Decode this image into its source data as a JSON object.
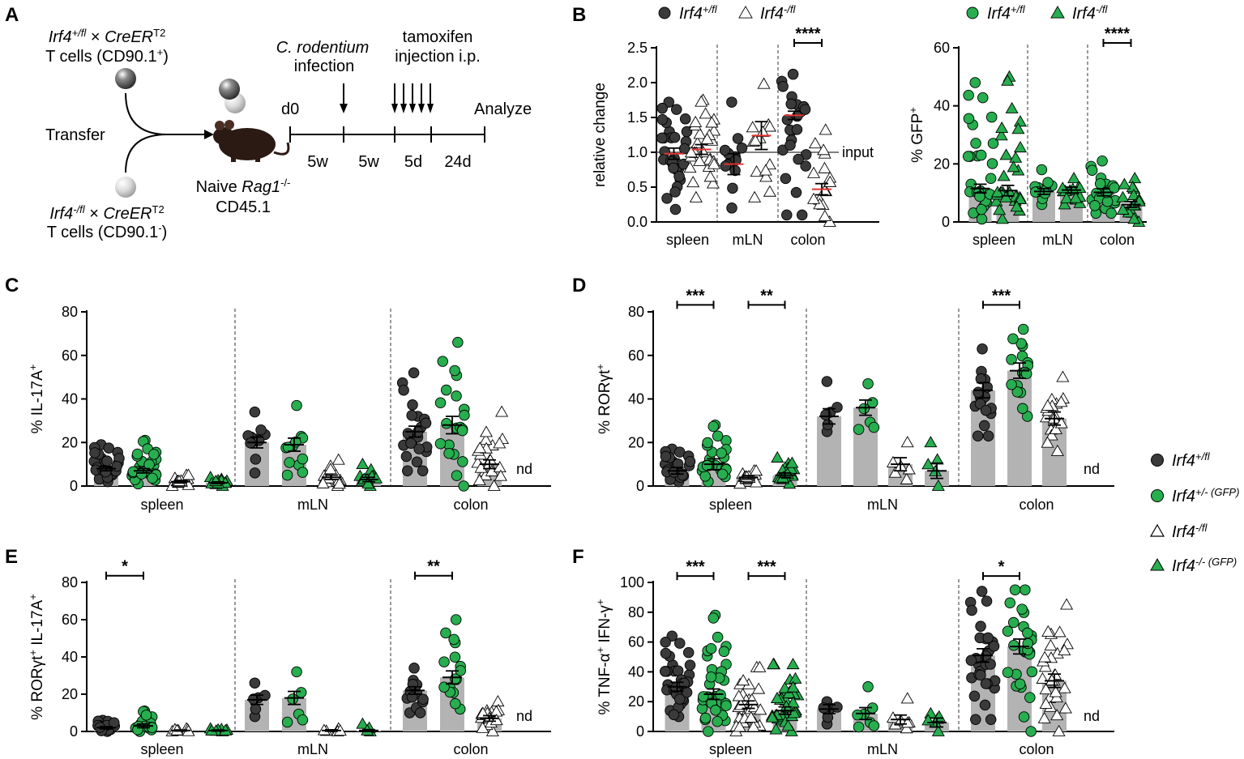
{
  "figure": {
    "panel_labels": [
      "A",
      "B",
      "C",
      "D",
      "E",
      "F"
    ]
  },
  "schematic": {
    "donor_top": {
      "gene": "Irf4",
      "genotype": "+/fl",
      "cre": "CreER",
      "cre_sup": "T2",
      "cell_line": "T cells (CD90.1",
      "cell_sup": "+",
      "close": ")"
    },
    "donor_bottom": {
      "gene": "Irf4",
      "genotype": "-/fl",
      "cre": "CreER",
      "cre_sup": "T2",
      "cell_line": "T cells (CD90.1",
      "cell_sup": "-",
      "close": ")"
    },
    "transfer_label": "Transfer",
    "recipient": {
      "prefix": "Naive ",
      "gene": "Rag1",
      "sup": "-/-",
      "line2": "CD45.1"
    },
    "events": {
      "infection_italic": "C. rodentium",
      "infection": "infection",
      "tamoxifen": "tamoxifen",
      "injection": "injection i.p."
    },
    "timeline": {
      "start": "d0",
      "end": "Analyze",
      "intervals": [
        "5w",
        "5w",
        "5d",
        "24d"
      ]
    },
    "colors": {
      "dark_cell": "#555555",
      "light_cell": "#d4d4d4",
      "mouse": "#2b1a14"
    }
  },
  "colors": {
    "wt": "#3a3a3a",
    "green": "#27ae4f",
    "bar": "#b3b3b3",
    "median": "#e8312f",
    "axis": "#000000"
  },
  "legend_main": {
    "items": [
      {
        "gene": "Irf4",
        "sup": "+/fl",
        "marker": "circle",
        "color": "#3a3a3a"
      },
      {
        "gene": "Irf4",
        "sup": "+/- (GFP)",
        "marker": "circle",
        "color": "#27ae4f"
      },
      {
        "gene": "Irf4",
        "sup": "-/fl",
        "marker": "triangle",
        "color": "#ffffff"
      },
      {
        "gene": "Irf4",
        "sup": "-/- (GFP)",
        "marker": "triangle",
        "color": "#27ae4f"
      }
    ]
  },
  "chart_data": [
    {
      "id": "B1",
      "panel": "B",
      "type": "scatter",
      "ylabel": "relative change",
      "ylim": [
        0,
        2.5
      ],
      "yticks": [
        0.0,
        0.5,
        1.0,
        1.5,
        2.0,
        2.5
      ],
      "tick_labels": [
        "0.0",
        "0.5",
        "1.0",
        "1.5",
        "2.0",
        "2.5"
      ],
      "categories": [
        "spleen",
        "mLN",
        "colon"
      ],
      "reference_line": {
        "value": 1.0,
        "label": "input"
      },
      "legend": [
        {
          "gene": "Irf4",
          "sup": "+/fl",
          "marker": "circle",
          "color": "#3a3a3a"
        },
        {
          "gene": "Irf4",
          "sup": "-/fl",
          "marker": "triangle",
          "color": "#ffffff"
        }
      ],
      "series": [
        {
          "name": "Irf4+/fl",
          "marker": "circle",
          "color": "#3a3a3a",
          "values": [
            [
              0.98,
              0.18,
              1.72,
              30
            ],
            [
              0.83,
              0.2,
              1.72,
              14
            ],
            [
              1.53,
              0.1,
              2.12,
              24
            ]
          ]
        },
        {
          "name": "Irf4-/fl",
          "marker": "triangle",
          "color": "#ffffff",
          "values": [
            [
              1.04,
              0.35,
              1.75,
              30
            ],
            [
              1.24,
              0.35,
              1.98,
              14
            ],
            [
              0.47,
              0.0,
              1.32,
              16
            ]
          ]
        }
      ],
      "error": [
        [
          0.08,
          0.07
        ],
        [
          0.15,
          0.2
        ],
        [
          0.06,
          0.08
        ]
      ],
      "median_marks": true,
      "significance": [
        {
          "group": 2,
          "from_series": 0,
          "to_series": 1,
          "y": 2.5,
          "label": "****"
        }
      ]
    },
    {
      "id": "B2",
      "panel": "B",
      "type": "bar",
      "ylabel": "% GFP",
      "ylabel_sup": "+",
      "ylim": [
        0,
        60
      ],
      "yticks": [
        0,
        20,
        40,
        60
      ],
      "tick_labels": [
        "0",
        "20",
        "40",
        "60"
      ],
      "categories": [
        "spleen",
        "mLN",
        "colon"
      ],
      "legend": [
        {
          "gene": "Irf4",
          "sup": "+/fl",
          "marker": "circle",
          "color": "#27ae4f"
        },
        {
          "gene": "Irf4",
          "sup": "-/fl",
          "marker": "triangle",
          "color": "#27ae4f"
        }
      ],
      "series": [
        {
          "name": "Irf4+/fl",
          "marker": "circle",
          "color": "#27ae4f",
          "values": [
            [
              11.5,
              1,
              48,
              30
            ],
            [
              10.5,
              6,
              18,
              14
            ],
            [
              10.2,
              3,
              21,
              24
            ]
          ]
        },
        {
          "name": "Irf4-/fl",
          "marker": "triangle",
          "color": "#27ae4f",
          "values": [
            [
              10.8,
              1,
              50,
              30
            ],
            [
              11.0,
              6,
              15,
              14
            ],
            [
              6.0,
              0,
              15,
              16
            ]
          ]
        }
      ],
      "error": [
        [
          1.5,
          1.8
        ],
        [
          1.0,
          1.0
        ],
        [
          1.2,
          1.0
        ]
      ],
      "significance": [
        {
          "group": 2,
          "from_series": 0,
          "to_series": 1,
          "y": 60,
          "label": "****"
        }
      ]
    },
    {
      "id": "C",
      "panel": "C",
      "type": "bar",
      "ylabel": "% IL-17A",
      "ylabel_sup": "+",
      "ylim": [
        0,
        80
      ],
      "yticks": [
        0,
        20,
        40,
        60,
        80
      ],
      "tick_labels": [
        "0",
        "20",
        "40",
        "60",
        "80"
      ],
      "categories": [
        "spleen",
        "mLN",
        "colon"
      ],
      "nd_label": "nd",
      "series": [
        {
          "name": "Irf4+/fl",
          "marker": "circle",
          "color": "#3a3a3a",
          "values": [
            [
              8,
              2,
              19,
              30
            ],
            [
              20,
              6,
              34,
              12
            ],
            [
              25,
              7,
              52,
              24
            ]
          ]
        },
        {
          "name": "Irf4+/- (GFP)",
          "marker": "circle",
          "color": "#27ae4f",
          "values": [
            [
              7,
              1,
              21,
              30
            ],
            [
              19,
              5,
              37,
              12
            ],
            [
              28,
              0,
              66,
              22
            ]
          ]
        },
        {
          "name": "Irf4-/fl",
          "marker": "triangle",
          "color": "#ffffff",
          "values": [
            [
              2,
              0,
              5,
              14
            ],
            [
              4,
              0,
              12,
              14
            ],
            [
              10,
              0,
              34,
              22
            ]
          ]
        },
        {
          "name": "Irf4-/- (GFP)",
          "marker": "triangle",
          "color": "#27ae4f",
          "values": [
            [
              1.5,
              0,
              4,
              12
            ],
            [
              3,
              0,
              10,
              12
            ],
            null
          ]
        }
      ],
      "error": [
        [
          1,
          1,
          0.6,
          0.4
        ],
        [
          2.5,
          3,
          1,
          1
        ],
        [
          2.5,
          4,
          2,
          null
        ]
      ],
      "significance": []
    },
    {
      "id": "D",
      "panel": "D",
      "type": "bar",
      "ylabel": "% RORγt",
      "ylabel_sup": "+",
      "ylim": [
        0,
        80
      ],
      "yticks": [
        0,
        20,
        40,
        60,
        80
      ],
      "tick_labels": [
        "0",
        "20",
        "40",
        "60",
        "80"
      ],
      "categories": [
        "spleen",
        "mLN",
        "colon"
      ],
      "nd_label": "nd",
      "series": [
        {
          "name": "Irf4+/fl",
          "marker": "circle",
          "color": "#3a3a3a",
          "values": [
            [
              7,
              2,
              17,
              24
            ],
            [
              32,
              25,
              48,
              6
            ],
            [
              44,
              23,
              63,
              18
            ]
          ]
        },
        {
          "name": "Irf4+/- (GFP)",
          "marker": "circle",
          "color": "#27ae4f",
          "values": [
            [
              10,
              2,
              28,
              26
            ],
            [
              36,
              26,
              47,
              6
            ],
            [
              53,
              32,
              72,
              18
            ]
          ]
        },
        {
          "name": "Irf4-/fl",
          "marker": "triangle",
          "color": "#ffffff",
          "values": [
            [
              4,
              1,
              7,
              14
            ],
            [
              10,
              3,
              20,
              6
            ],
            [
              31,
              16,
              50,
              18
            ]
          ]
        },
        {
          "name": "Irf4-/- (GFP)",
          "marker": "triangle",
          "color": "#27ae4f",
          "values": [
            [
              5,
              1,
              13,
              18
            ],
            [
              7,
              0,
              20,
              5
            ],
            null
          ]
        }
      ],
      "error": [
        [
          1.5,
          2.5,
          0.8,
          1
        ],
        [
          3.5,
          3.5,
          3,
          3.5
        ],
        [
          3.5,
          3.5,
          3,
          null
        ]
      ],
      "significance": [
        {
          "group": 0,
          "from_series": 0,
          "to_series": 1,
          "y": 81,
          "label": "***"
        },
        {
          "group": 0,
          "from_series": 2,
          "to_series": 3,
          "y": 81,
          "label": "**"
        },
        {
          "group": 2,
          "from_series": 0,
          "to_series": 1,
          "y": 81,
          "label": "***"
        }
      ]
    },
    {
      "id": "E",
      "panel": "E",
      "type": "bar",
      "ylabel": "% RORγt",
      "ylabel_sup": "+",
      "ylabel2": " IL-17A",
      "ylabel2_sup": "+",
      "ylim": [
        0,
        80
      ],
      "yticks": [
        0,
        20,
        40,
        60,
        80
      ],
      "tick_labels": [
        "0",
        "20",
        "40",
        "60",
        "80"
      ],
      "categories": [
        "spleen",
        "mLN",
        "colon"
      ],
      "nd_label": "nd",
      "series": [
        {
          "name": "Irf4+/fl",
          "marker": "circle",
          "color": "#3a3a3a",
          "values": [
            [
              2,
              0,
              6,
              18
            ],
            [
              17,
              8,
              26,
              6
            ],
            [
              22,
              10,
              34,
              16
            ]
          ]
        },
        {
          "name": "Irf4+/- (GFP)",
          "marker": "circle",
          "color": "#27ae4f",
          "values": [
            [
              3,
              0,
              11,
              18
            ],
            [
              18,
              5,
              32,
              6
            ],
            [
              29,
              12,
              60,
              16
            ]
          ]
        },
        {
          "name": "Irf4-/fl",
          "marker": "triangle",
          "color": "#ffffff",
          "values": [
            [
              0.5,
              0,
              1.5,
              8
            ],
            [
              0.5,
              0,
              1.5,
              5
            ],
            [
              7,
              0,
              16,
              18
            ]
          ]
        },
        {
          "name": "Irf4-/- (GFP)",
          "marker": "triangle",
          "color": "#27ae4f",
          "values": [
            [
              0.5,
              0,
              1.5,
              8
            ],
            [
              0.5,
              0,
              4,
              4
            ],
            null
          ]
        }
      ],
      "error": [
        [
          0.6,
          1,
          0.3,
          0.3
        ],
        [
          2.5,
          3.5,
          0.4,
          0.5
        ],
        [
          2,
          3.5,
          1.5,
          null
        ]
      ],
      "significance": [
        {
          "group": 0,
          "from_series": 0,
          "to_series": 1,
          "y": 81,
          "label": "*"
        },
        {
          "group": 2,
          "from_series": 0,
          "to_series": 1,
          "y": 81,
          "label": "**"
        }
      ]
    },
    {
      "id": "F",
      "panel": "F",
      "type": "bar",
      "ylabel": "% TNF-α",
      "ylabel_sup": "+",
      "ylabel2": " IFN-γ",
      "ylabel2_sup": "+",
      "ylim": [
        0,
        100
      ],
      "yticks": [
        0,
        20,
        40,
        60,
        80,
        100
      ],
      "tick_labels": [
        "0",
        "20",
        "40",
        "60",
        "80",
        "100"
      ],
      "categories": [
        "spleen",
        "mLN",
        "colon"
      ],
      "nd_label": "nd",
      "series": [
        {
          "name": "Irf4+/fl",
          "marker": "circle",
          "color": "#3a3a3a",
          "values": [
            [
              30,
              10,
              64,
              36
            ],
            [
              15,
              5,
              20,
              7
            ],
            [
              51,
              8,
              94,
              30
            ]
          ]
        },
        {
          "name": "Irf4+/- (GFP)",
          "marker": "circle",
          "color": "#27ae4f",
          "values": [
            [
              25,
              0,
              78,
              36
            ],
            [
              12,
              3,
              30,
              7
            ],
            [
              57,
              0,
              95,
              28
            ]
          ]
        },
        {
          "name": "Irf4-/fl",
          "marker": "triangle",
          "color": "#ffffff",
          "values": [
            [
              18,
              0,
              43,
              36
            ],
            [
              8,
              2,
              22,
              7
            ],
            [
              34,
              0,
              85,
              28
            ]
          ]
        },
        {
          "name": "Irf4-/- (GFP)",
          "marker": "triangle",
          "color": "#27ae4f",
          "values": [
            [
              14,
              0,
              45,
              36
            ],
            [
              6,
              0,
              12,
              6
            ],
            null
          ]
        }
      ],
      "error": [
        [
          3,
          3.5,
          2.5,
          2.5
        ],
        [
          3,
          4,
          3,
          3
        ],
        [
          4.5,
          5,
          4.5,
          null
        ]
      ],
      "significance": [
        {
          "group": 0,
          "from_series": 0,
          "to_series": 1,
          "y": 101,
          "label": "***"
        },
        {
          "group": 0,
          "from_series": 2,
          "to_series": 3,
          "y": 101,
          "label": "***"
        },
        {
          "group": 2,
          "from_series": 0,
          "to_series": 1,
          "y": 101,
          "label": "*"
        }
      ]
    }
  ]
}
